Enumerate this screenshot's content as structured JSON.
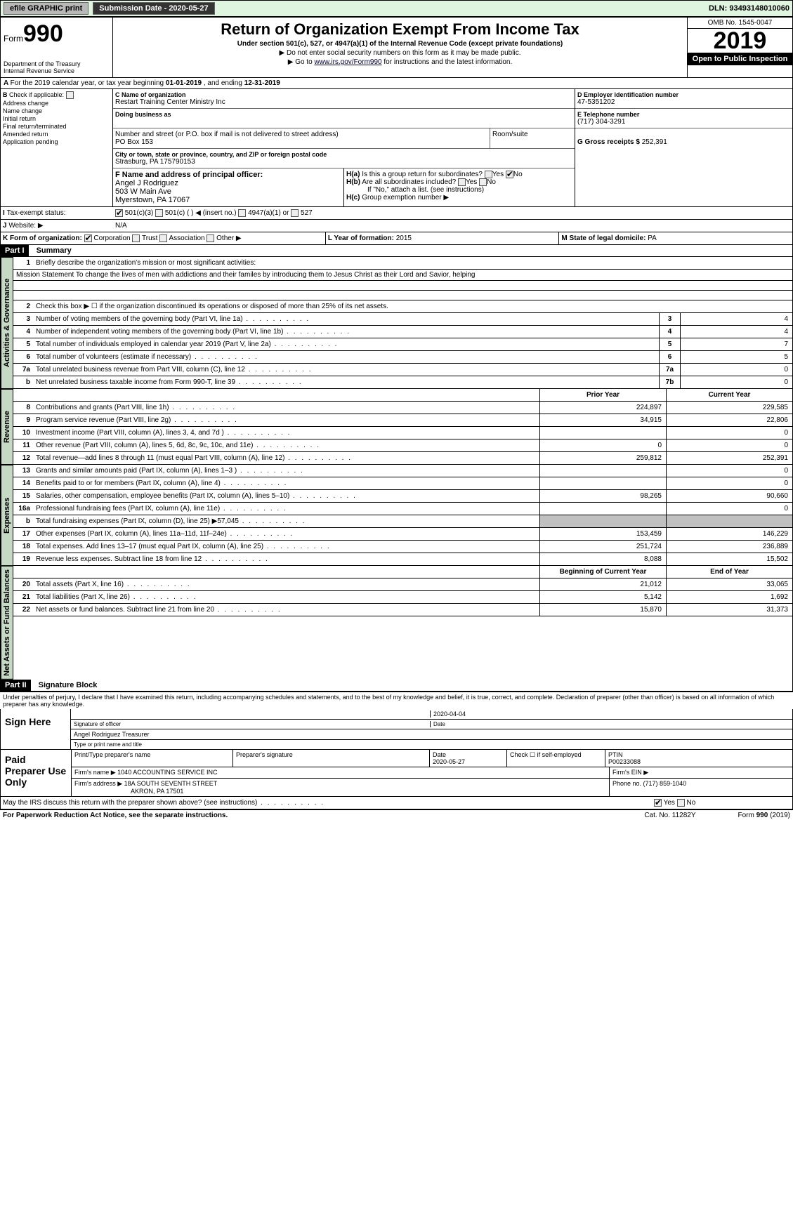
{
  "topbar": {
    "efile_label": "efile GRAPHIC print",
    "submission_label": "Submission Date - 2020-05-27",
    "dln_label": "DLN: 93493148010060"
  },
  "header": {
    "form_word": "Form",
    "form_number": "990",
    "dept": "Department of the Treasury\nInternal Revenue Service",
    "title": "Return of Organization Exempt From Income Tax",
    "subtitle": "Under section 501(c), 527, or 4947(a)(1) of the Internal Revenue Code (except private foundations)",
    "instr1": "▶ Do not enter social security numbers on this form as it may be made public.",
    "instr2_pre": "▶ Go to ",
    "instr2_link": "www.irs.gov/Form990",
    "instr2_post": " for instructions and the latest information.",
    "omb": "OMB No. 1545-0047",
    "year": "2019",
    "open_public": "Open to Public Inspection"
  },
  "lineA": {
    "text_pre": "For the 2019 calendar year, or tax year beginning ",
    "begin": "01-01-2019",
    "mid": " , and ending ",
    "end": "12-31-2019"
  },
  "colB": {
    "label": "Check if applicable:",
    "items": [
      "Address change",
      "Name change",
      "Initial return",
      "Final return/terminated",
      "Amended return",
      "Application pending"
    ]
  },
  "colC": {
    "name_hdr": "C Name of organization",
    "name": "Restart Training Center Ministry Inc",
    "dba_hdr": "Doing business as",
    "addr_hdr": "Number and street (or P.O. box if mail is not delivered to street address)",
    "addr": "PO Box 153",
    "room_hdr": "Room/suite",
    "city_hdr": "City or town, state or province, country, and ZIP or foreign postal code",
    "city": "Strasburg, PA  175790153",
    "f_hdr": "F Name and address of principal officer:",
    "f_name": "Angel J Rodriguez",
    "f_addr1": "503 W Main Ave",
    "f_addr2": "Myerstown, PA  17067"
  },
  "colD": {
    "d_hdr": "D Employer identification number",
    "d_val": "47-5351202",
    "e_hdr": "E Telephone number",
    "e_val": "(717) 304-3291",
    "g_hdr": "G Gross receipts $ ",
    "g_val": "252,391"
  },
  "colH": {
    "ha_lbl": "H(a)",
    "ha_txt": "Is this a group return for subordinates?",
    "hb_lbl": "H(b)",
    "hb_txt": "Are all subordinates included?",
    "hb_note": "If \"No,\" attach a list. (see instructions)",
    "hc_lbl": "H(c)",
    "hc_txt": "Group exemption number ▶",
    "yes": "Yes",
    "no": "No"
  },
  "rowI": {
    "lbl": "Tax-exempt status:",
    "opts": [
      "501(c)(3)",
      "501(c) (    ) ◀ (insert no.)",
      "4947(a)(1) or",
      "527"
    ]
  },
  "rowJ": {
    "lbl": "Website: ▶",
    "val": "N/A"
  },
  "rowK": {
    "lbl": "K Form of organization:",
    "opts": [
      "Corporation",
      "Trust",
      "Association",
      "Other ▶"
    ]
  },
  "rowL": {
    "lbl": "L Year of formation: ",
    "val": "2015"
  },
  "rowM": {
    "lbl": "M State of legal domicile: ",
    "val": "PA"
  },
  "part1": {
    "hdr": "Part I",
    "title": "Summary",
    "side_gov": "Activities & Governance",
    "side_rev": "Revenue",
    "side_exp": "Expenses",
    "side_net": "Net Assets or Fund Balances",
    "line1_lbl": "Briefly describe the organization's mission or most significant activities:",
    "line1_txt": "Mission Statement To change the lives of men with addictions and their familes by introducing them to Jesus Christ as their Lord and Savior, helping",
    "line2_txt": "Check this box ▶ ☐ if the organization discontinued its operations or disposed of more than 25% of its net assets.",
    "simple_lines": [
      {
        "no": "3",
        "txt": "Number of voting members of the governing body (Part VI, line 1a)",
        "box": "3",
        "val": "4"
      },
      {
        "no": "4",
        "txt": "Number of independent voting members of the governing body (Part VI, line 1b)",
        "box": "4",
        "val": "4"
      },
      {
        "no": "5",
        "txt": "Total number of individuals employed in calendar year 2019 (Part V, line 2a)",
        "box": "5",
        "val": "7"
      },
      {
        "no": "6",
        "txt": "Total number of volunteers (estimate if necessary)",
        "box": "6",
        "val": "5"
      },
      {
        "no": "7a",
        "txt": "Total unrelated business revenue from Part VIII, column (C), line 12",
        "box": "7a",
        "val": "0"
      },
      {
        "no": "b",
        "txt": "Net unrelated business taxable income from Form 990-T, line 39",
        "box": "7b",
        "val": "0"
      }
    ],
    "prior_hdr": "Prior Year",
    "current_hdr": "Current Year",
    "rev_lines": [
      {
        "no": "8",
        "txt": "Contributions and grants (Part VIII, line 1h)",
        "py": "224,897",
        "cy": "229,585"
      },
      {
        "no": "9",
        "txt": "Program service revenue (Part VIII, line 2g)",
        "py": "34,915",
        "cy": "22,806"
      },
      {
        "no": "10",
        "txt": "Investment income (Part VIII, column (A), lines 3, 4, and 7d )",
        "py": "",
        "cy": "0"
      },
      {
        "no": "11",
        "txt": "Other revenue (Part VIII, column (A), lines 5, 6d, 8c, 9c, 10c, and 11e)",
        "py": "0",
        "cy": "0"
      },
      {
        "no": "12",
        "txt": "Total revenue—add lines 8 through 11 (must equal Part VIII, column (A), line 12)",
        "py": "259,812",
        "cy": "252,391"
      }
    ],
    "exp_lines": [
      {
        "no": "13",
        "txt": "Grants and similar amounts paid (Part IX, column (A), lines 1–3 )",
        "py": "",
        "cy": "0"
      },
      {
        "no": "14",
        "txt": "Benefits paid to or for members (Part IX, column (A), line 4)",
        "py": "",
        "cy": "0"
      },
      {
        "no": "15",
        "txt": "Salaries, other compensation, employee benefits (Part IX, column (A), lines 5–10)",
        "py": "98,265",
        "cy": "90,660"
      },
      {
        "no": "16a",
        "txt": "Professional fundraising fees (Part IX, column (A), line 11e)",
        "py": "",
        "cy": "0"
      },
      {
        "no": "b",
        "txt": "Total fundraising expenses (Part IX, column (D), line 25) ▶57,045",
        "py": "SHADE",
        "cy": "SHADE"
      },
      {
        "no": "17",
        "txt": "Other expenses (Part IX, column (A), lines 11a–11d, 11f–24e)",
        "py": "153,459",
        "cy": "146,229"
      },
      {
        "no": "18",
        "txt": "Total expenses. Add lines 13–17 (must equal Part IX, column (A), line 25)",
        "py": "251,724",
        "cy": "236,889"
      },
      {
        "no": "19",
        "txt": "Revenue less expenses. Subtract line 18 from line 12",
        "py": "8,088",
        "cy": "15,502"
      }
    ],
    "boy_hdr": "Beginning of Current Year",
    "eoy_hdr": "End of Year",
    "net_lines": [
      {
        "no": "20",
        "txt": "Total assets (Part X, line 16)",
        "py": "21,012",
        "cy": "33,065"
      },
      {
        "no": "21",
        "txt": "Total liabilities (Part X, line 26)",
        "py": "5,142",
        "cy": "1,692"
      },
      {
        "no": "22",
        "txt": "Net assets or fund balances. Subtract line 21 from line 20",
        "py": "15,870",
        "cy": "31,373"
      }
    ]
  },
  "part2": {
    "hdr": "Part II",
    "title": "Signature Block",
    "perjury": "Under penalties of perjury, I declare that I have examined this return, including accompanying schedules and statements, and to the best of my knowledge and belief, it is true, correct, and complete. Declaration of preparer (other than officer) is based on all information of which preparer has any knowledge.",
    "sign_here": "Sign Here",
    "sig_officer": "Signature of officer",
    "sig_date": "2020-04-04",
    "date_lbl": "Date",
    "sig_name": "Angel Rodriguez Treasurer",
    "sig_name_lbl": "Type or print name and title",
    "paid_lbl": "Paid Preparer Use Only",
    "prep_name_hdr": "Print/Type preparer's name",
    "prep_sig_hdr": "Preparer's signature",
    "prep_date_hdr": "Date",
    "prep_date": "2020-05-27",
    "prep_check_lbl": "Check ☐ if self-employed",
    "ptin_hdr": "PTIN",
    "ptin": "P00233088",
    "firm_name_lbl": "Firm's name    ▶",
    "firm_name": "1040 ACCOUNTING SERVICE INC",
    "firm_ein_lbl": "Firm's EIN ▶",
    "firm_addr_lbl": "Firm's address ▶",
    "firm_addr1": "18A SOUTH SEVENTH STREET",
    "firm_addr2": "AKRON, PA  17501",
    "phone_lbl": "Phone no. ",
    "phone": "(717) 859-1040",
    "discuss": "May the IRS discuss this return with the preparer shown above? (see instructions)"
  },
  "footer": {
    "left": "For Paperwork Reduction Act Notice, see the separate instructions.",
    "mid": "Cat. No. 11282Y",
    "right": "Form 990 (2019)"
  }
}
